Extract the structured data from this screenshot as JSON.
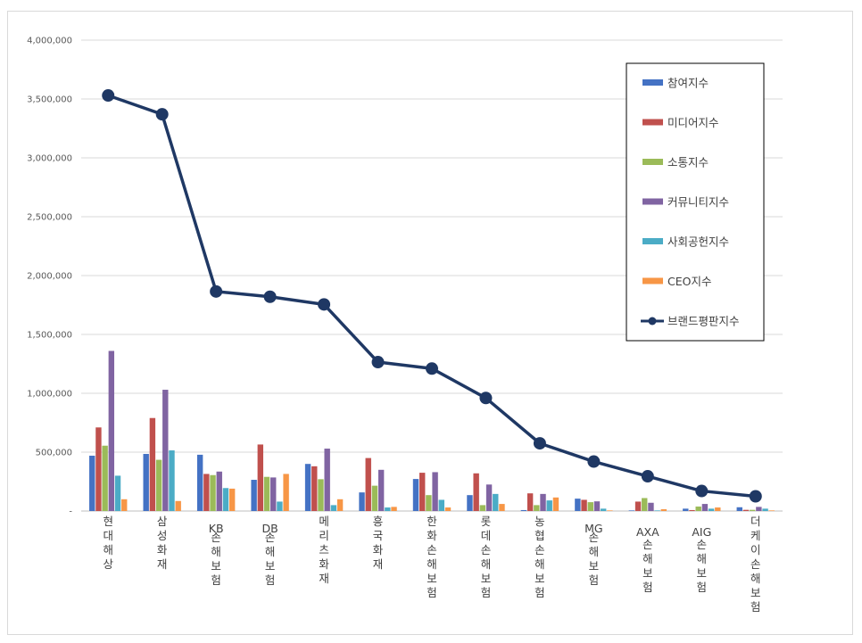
{
  "chart_data": {
    "type": "bar",
    "categories": [
      "현대해상",
      "삼성화재",
      "KB손해보험",
      "DB손해보험",
      "메리츠화재",
      "흥국화재",
      "한화손해보험",
      "롯데손해보험",
      "농협손해보험",
      "MG손해보험",
      "AXA손해보험",
      "AIG손해보험",
      "더케이손해보험"
    ],
    "series": [
      {
        "name": "참여지수",
        "kind": "bar",
        "color": "#4472c4",
        "values": [
          470000,
          485000,
          478000,
          265000,
          400000,
          158000,
          272000,
          135000,
          8000,
          105000,
          5000,
          20000,
          32000
        ]
      },
      {
        "name": "미디어지수",
        "kind": "bar",
        "color": "#c0504d",
        "values": [
          710000,
          790000,
          315000,
          565000,
          380000,
          450000,
          325000,
          320000,
          150000,
          95000,
          80000,
          8000,
          10000
        ]
      },
      {
        "name": "소통지수",
        "kind": "bar",
        "color": "#9bbb59",
        "values": [
          555000,
          435000,
          305000,
          290000,
          270000,
          215000,
          135000,
          50000,
          50000,
          75000,
          110000,
          38000,
          10000
        ]
      },
      {
        "name": "커뮤니티지수",
        "kind": "bar",
        "color": "#8064a2",
        "values": [
          1360000,
          1030000,
          335000,
          285000,
          530000,
          350000,
          330000,
          225000,
          145000,
          82000,
          70000,
          60000,
          35000
        ]
      },
      {
        "name": "사회공헌지수",
        "kind": "bar",
        "color": "#4bacc6",
        "values": [
          300000,
          515000,
          195000,
          80000,
          50000,
          30000,
          95000,
          145000,
          90000,
          20000,
          5000,
          20000,
          20000
        ]
      },
      {
        "name": "CEO지수",
        "kind": "bar",
        "color": "#f79646",
        "values": [
          100000,
          85000,
          190000,
          315000,
          100000,
          35000,
          30000,
          60000,
          115000,
          5000,
          15000,
          30000,
          5000
        ]
      },
      {
        "name": "브랜드평판지수",
        "kind": "line",
        "color": "#1f3864",
        "values": [
          3530000,
          3370000,
          1865000,
          1820000,
          1755000,
          1265000,
          1210000,
          960000,
          575000,
          420000,
          295000,
          170000,
          125000
        ]
      }
    ],
    "yticks": [
      "4,000,000",
      "3,500,000",
      "3,000,000",
      "2,500,000",
      "2,000,000",
      "1,500,000",
      "1,000,000",
      "500,000",
      "-"
    ],
    "ylim": [
      0,
      4000000
    ],
    "grid": true,
    "legend_position": "right"
  }
}
